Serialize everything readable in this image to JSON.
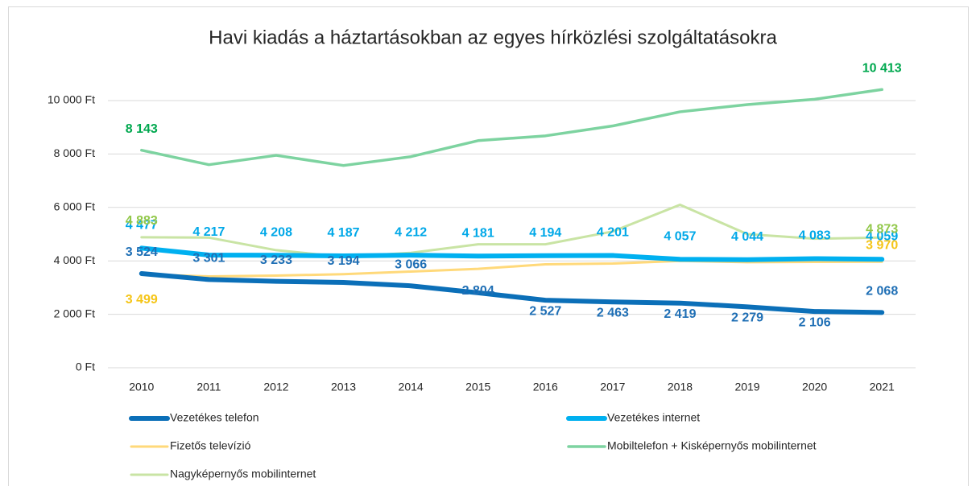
{
  "chart_data": {
    "type": "line",
    "title": "Havi kiadás a háztartásokban az egyes hírközlési szolgáltatásokra",
    "categories": [
      "2010",
      "2011",
      "2012",
      "2013",
      "2014",
      "2015",
      "2016",
      "2017",
      "2018",
      "2019",
      "2020",
      "2021"
    ],
    "ylim": [
      0,
      10000
    ],
    "yticks": [
      {
        "value": 0,
        "label": "0 Ft"
      },
      {
        "value": 2000,
        "label": "2 000 Ft"
      },
      {
        "value": 4000,
        "label": "4 000 Ft"
      },
      {
        "value": 6000,
        "label": "6 000 Ft"
      },
      {
        "value": 8000,
        "label": "8 000 Ft"
      },
      {
        "value": 10000,
        "label": "10 000 Ft"
      }
    ],
    "grid": true,
    "legend": "bottom",
    "series": [
      {
        "name": "Vezetékes telefon",
        "color": "#0b6fb8",
        "label_color": "#1f6fb5",
        "width": 6,
        "values": [
          3524,
          3301,
          3233,
          3194,
          3066,
          2804,
          2527,
          2463,
          2419,
          2279,
          2106,
          2068
        ],
        "value_labels": [
          "3 524",
          "3 301",
          "3 233",
          "3 194",
          "3 066",
          "2 804",
          "2 527",
          "2 463",
          "2 419",
          "2 279",
          "2 106",
          "2 068"
        ]
      },
      {
        "name": "Vezetékes internet",
        "color": "#00b0f0",
        "label_color": "#00a8e8",
        "width": 6,
        "values": [
          4477,
          4217,
          4208,
          4187,
          4212,
          4181,
          4194,
          4201,
          4057,
          4044,
          4083,
          4059
        ],
        "value_labels": [
          "4 477",
          "4 217",
          "4 208",
          "4 187",
          "4 212",
          "4 181",
          "4 194",
          "4 201",
          "4 057",
          "4 044",
          "4 083",
          "4 059"
        ]
      },
      {
        "name": "Fizetős televízió",
        "color": "#ffd97a",
        "label_color": "#f5c518",
        "width": 3,
        "values": [
          3499,
          3420,
          3450,
          3500,
          3600,
          3700,
          3870,
          3900,
          4000,
          3950,
          3960,
          3970
        ],
        "value_labels": [
          "3 499",
          null,
          null,
          null,
          null,
          null,
          null,
          null,
          null,
          null,
          null,
          "3 970"
        ]
      },
      {
        "name": "Mobiltelefon + Kisképernyős mobilinternet",
        "color": "#7dd3a0",
        "label_color": "#00a84f",
        "width": 3.5,
        "values": [
          8143,
          7600,
          7950,
          7570,
          7900,
          8500,
          8680,
          9050,
          9580,
          9850,
          10050,
          10413
        ],
        "value_labels": [
          "8 143",
          null,
          null,
          null,
          null,
          null,
          null,
          null,
          null,
          null,
          null,
          "10 413"
        ]
      },
      {
        "name": "Nagyképernyős mobilinternet",
        "color": "#c9e4a4",
        "label_color": "#92c84a",
        "width": 3,
        "values": [
          4883,
          4870,
          4400,
          4150,
          4300,
          4620,
          4620,
          5100,
          6100,
          5000,
          4830,
          4873
        ],
        "value_labels": [
          "4 883",
          null,
          null,
          null,
          null,
          null,
          null,
          null,
          null,
          null,
          null,
          "4 873"
        ]
      }
    ]
  }
}
